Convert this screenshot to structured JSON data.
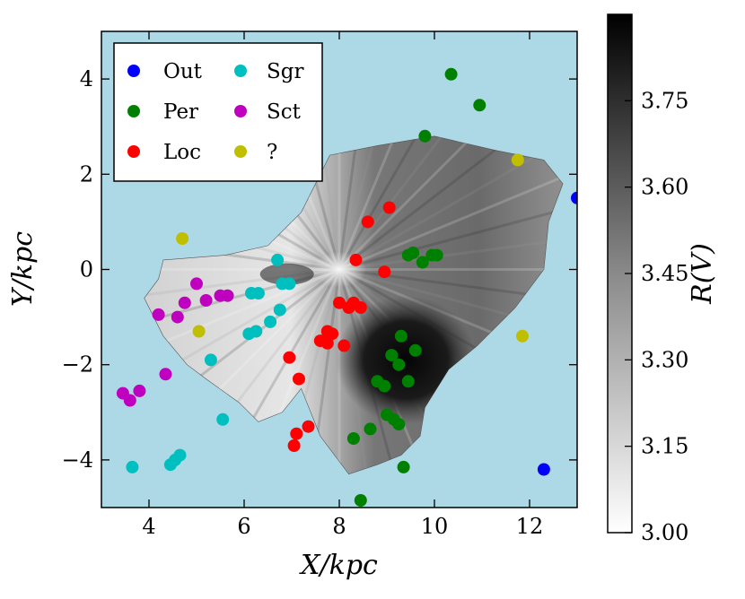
{
  "chart_data": {
    "type": "scatter",
    "xlabel": "X/kpc",
    "ylabel": "Y/kpc",
    "xlim": [
      3,
      13
    ],
    "ylim": [
      -5,
      5
    ],
    "x_ticks": [
      4,
      6,
      8,
      10,
      12
    ],
    "y_ticks": [
      -4,
      -2,
      0,
      2,
      4
    ],
    "x_tick_labels": [
      "4",
      "6",
      "8",
      "10",
      "12"
    ],
    "y_tick_labels": [
      "−4",
      "−2",
      "0",
      "2",
      "4"
    ],
    "background_color": "#add8e6",
    "colorbar": {
      "label": "R(V)",
      "min": 3.0,
      "max": 3.9,
      "ticks": [
        3.0,
        3.15,
        3.3,
        3.45,
        3.6,
        3.75
      ],
      "tick_labels": [
        "3.00",
        "3.15",
        "3.30",
        "3.45",
        "3.60",
        "3.75"
      ],
      "colormap": "gray_r"
    },
    "extinction_map": {
      "description_region_outline_kpc": [
        [
          4.3,
          0.2
        ],
        [
          5.6,
          0.3
        ],
        [
          6.5,
          0.5
        ],
        [
          7.2,
          1.2
        ],
        [
          7.8,
          2.4
        ],
        [
          8.8,
          2.6
        ],
        [
          10.0,
          2.8
        ],
        [
          11.3,
          2.5
        ],
        [
          12.3,
          2.3
        ],
        [
          12.7,
          1.8
        ],
        [
          12.4,
          1.0
        ],
        [
          12.3,
          0.0
        ],
        [
          11.7,
          -0.8
        ],
        [
          10.9,
          -1.6
        ],
        [
          10.3,
          -2.1
        ],
        [
          9.8,
          -2.9
        ],
        [
          9.7,
          -3.5
        ],
        [
          9.3,
          -3.9
        ],
        [
          8.8,
          -4.1
        ],
        [
          8.2,
          -4.3
        ],
        [
          7.6,
          -3.5
        ],
        [
          7.2,
          -2.5
        ],
        [
          6.8,
          -3.0
        ],
        [
          6.3,
          -3.2
        ],
        [
          5.9,
          -2.8
        ],
        [
          5.2,
          -2.3
        ],
        [
          4.8,
          -2.0
        ],
        [
          4.3,
          -1.4
        ],
        [
          3.9,
          -0.6
        ],
        [
          4.2,
          -0.2
        ]
      ],
      "high_rv_core_kpc": [
        9.4,
        -1.9
      ]
    },
    "legend": {
      "location": "upper-left",
      "entries": [
        {
          "label": "Out",
          "color": "#0000ff"
        },
        {
          "label": "Per",
          "color": "#008000"
        },
        {
          "label": "Loc",
          "color": "#ff0000"
        },
        {
          "label": "Sgr",
          "color": "#00bfbf"
        },
        {
          "label": "Sct",
          "color": "#bf00bf"
        },
        {
          "label": "?",
          "color": "#bfbf00"
        }
      ]
    },
    "series": [
      {
        "name": "Out",
        "color": "#0000ff",
        "points": [
          [
            12.3,
            -4.2
          ],
          [
            13.0,
            1.5
          ]
        ]
      },
      {
        "name": "Per",
        "color": "#008000",
        "points": [
          [
            10.35,
            4.1
          ],
          [
            10.95,
            3.45
          ],
          [
            9.8,
            2.8
          ],
          [
            9.45,
            0.3
          ],
          [
            9.55,
            0.35
          ],
          [
            9.75,
            0.15
          ],
          [
            9.95,
            0.3
          ],
          [
            10.05,
            0.3
          ],
          [
            9.3,
            -1.4
          ],
          [
            9.1,
            -1.8
          ],
          [
            9.25,
            -2.0
          ],
          [
            9.6,
            -1.7
          ],
          [
            8.8,
            -2.35
          ],
          [
            8.95,
            -2.45
          ],
          [
            9.45,
            -2.35
          ],
          [
            9.0,
            -3.05
          ],
          [
            9.15,
            -3.15
          ],
          [
            9.25,
            -3.25
          ],
          [
            8.3,
            -3.55
          ],
          [
            8.65,
            -3.35
          ],
          [
            9.35,
            -4.15
          ],
          [
            8.45,
            -4.85
          ]
        ]
      },
      {
        "name": "Loc",
        "color": "#ff0000",
        "points": [
          [
            8.6,
            1.0
          ],
          [
            9.05,
            1.3
          ],
          [
            8.35,
            0.2
          ],
          [
            8.95,
            -0.05
          ],
          [
            8.0,
            -0.7
          ],
          [
            8.2,
            -0.8
          ],
          [
            8.3,
            -0.7
          ],
          [
            8.45,
            -0.8
          ],
          [
            7.75,
            -1.3
          ],
          [
            7.85,
            -1.35
          ],
          [
            7.6,
            -1.5
          ],
          [
            7.75,
            -1.55
          ],
          [
            8.1,
            -1.6
          ],
          [
            6.95,
            -1.85
          ],
          [
            7.15,
            -2.3
          ],
          [
            7.35,
            -3.3
          ],
          [
            7.1,
            -3.45
          ],
          [
            7.05,
            -3.7
          ]
        ]
      },
      {
        "name": "Sgr",
        "color": "#00bfbf",
        "points": [
          [
            6.7,
            0.2
          ],
          [
            6.8,
            -0.3
          ],
          [
            6.95,
            -0.3
          ],
          [
            6.15,
            -0.5
          ],
          [
            6.3,
            -0.5
          ],
          [
            6.75,
            -0.85
          ],
          [
            6.55,
            -1.1
          ],
          [
            6.1,
            -1.35
          ],
          [
            6.25,
            -1.3
          ],
          [
            5.3,
            -1.9
          ],
          [
            5.55,
            -3.15
          ],
          [
            4.65,
            -3.9
          ],
          [
            4.55,
            -4.0
          ],
          [
            4.45,
            -4.1
          ],
          [
            3.65,
            -4.15
          ]
        ]
      },
      {
        "name": "Sct",
        "color": "#bf00bf",
        "points": [
          [
            5.0,
            -0.3
          ],
          [
            5.2,
            -0.65
          ],
          [
            5.5,
            -0.55
          ],
          [
            5.65,
            -0.55
          ],
          [
            4.75,
            -0.7
          ],
          [
            4.2,
            -0.95
          ],
          [
            4.6,
            -1.0
          ],
          [
            4.35,
            -2.2
          ],
          [
            3.8,
            -2.55
          ],
          [
            3.6,
            -2.75
          ],
          [
            3.45,
            -2.6
          ]
        ]
      },
      {
        "name": "?",
        "color": "#bfbf00",
        "points": [
          [
            4.7,
            0.65
          ],
          [
            5.05,
            -1.3
          ],
          [
            11.75,
            2.3
          ],
          [
            11.85,
            -1.4
          ]
        ]
      }
    ]
  }
}
